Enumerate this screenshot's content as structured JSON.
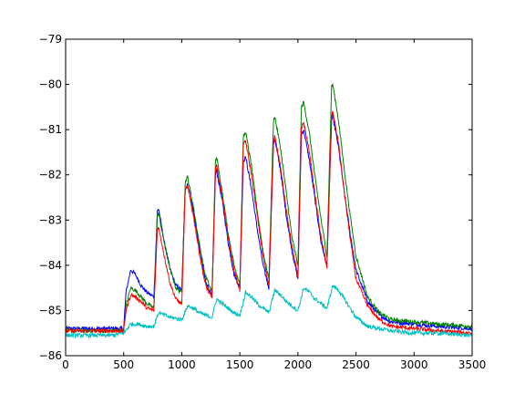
{
  "chart_data": {
    "type": "line",
    "title": "",
    "xlabel": "",
    "ylabel": "",
    "xlim": [
      0,
      3500
    ],
    "ylim": [
      -86,
      -79
    ],
    "grid": false,
    "x_ticks": [
      0,
      500,
      1000,
      1500,
      2000,
      2500,
      3000,
      3500
    ],
    "y_ticks": [
      -86,
      -85,
      -84,
      -83,
      -82,
      -81,
      -80,
      -79
    ],
    "x_tick_labels": [
      "0",
      "500",
      "1000",
      "1500",
      "2000",
      "2500",
      "3000",
      "3500"
    ],
    "y_tick_labels": [
      "−86",
      "−85",
      "−84",
      "−83",
      "−82",
      "−81",
      "−80",
      "−79"
    ],
    "series": [
      {
        "color": "#0000ff",
        "x": [
          0,
          500,
          520,
          560,
          600,
          650,
          700,
          760,
          790,
          800,
          850,
          900,
          950,
          1000,
          1030,
          1050,
          1100,
          1150,
          1200,
          1260,
          1290,
          1300,
          1350,
          1400,
          1450,
          1500,
          1530,
          1550,
          1600,
          1650,
          1700,
          1750,
          1790,
          1800,
          1850,
          1900,
          1950,
          2000,
          2030,
          2050,
          2100,
          2150,
          2200,
          2250,
          2290,
          2300,
          2350,
          2400,
          2450,
          2500,
          2600,
          2700,
          2800,
          3000,
          3200,
          3500
        ],
        "y": [
          -85.4,
          -85.4,
          -84.6,
          -84.1,
          -84.2,
          -84.45,
          -84.6,
          -84.7,
          -82.8,
          -82.75,
          -83.5,
          -84.1,
          -84.45,
          -84.55,
          -82.3,
          -82.2,
          -82.8,
          -83.6,
          -84.3,
          -84.7,
          -82.0,
          -81.9,
          -82.6,
          -83.5,
          -84.2,
          -84.5,
          -81.7,
          -81.6,
          -82.3,
          -83.2,
          -84.0,
          -84.5,
          -81.3,
          -81.2,
          -81.9,
          -82.9,
          -83.7,
          -84.3,
          -81.1,
          -81.0,
          -81.7,
          -82.6,
          -83.5,
          -84.0,
          -80.8,
          -80.7,
          -81.4,
          -82.4,
          -83.3,
          -84.1,
          -84.8,
          -85.1,
          -85.25,
          -85.3,
          -85.35,
          -85.4
        ]
      },
      {
        "color": "#008000",
        "x": [
          0,
          500,
          520,
          560,
          600,
          650,
          700,
          760,
          790,
          800,
          850,
          900,
          950,
          1000,
          1030,
          1050,
          1100,
          1150,
          1200,
          1260,
          1290,
          1300,
          1350,
          1400,
          1450,
          1500,
          1530,
          1550,
          1600,
          1650,
          1700,
          1750,
          1790,
          1800,
          1850,
          1900,
          1950,
          2000,
          2030,
          2050,
          2100,
          2150,
          2200,
          2250,
          2290,
          2300,
          2350,
          2400,
          2450,
          2500,
          2600,
          2700,
          2800,
          3000,
          3200,
          3500
        ],
        "y": [
          -85.45,
          -85.45,
          -84.9,
          -84.5,
          -84.55,
          -84.7,
          -84.85,
          -84.95,
          -82.9,
          -82.85,
          -83.5,
          -84.1,
          -84.5,
          -84.6,
          -82.15,
          -82.05,
          -82.7,
          -83.5,
          -84.2,
          -84.6,
          -81.7,
          -81.6,
          -82.4,
          -83.3,
          -84.0,
          -84.4,
          -81.15,
          -81.05,
          -81.8,
          -82.8,
          -83.7,
          -84.3,
          -80.8,
          -80.7,
          -81.4,
          -82.4,
          -83.4,
          -84.0,
          -80.5,
          -80.4,
          -81.1,
          -82.1,
          -83.0,
          -83.8,
          -80.05,
          -80.0,
          -80.8,
          -81.9,
          -82.9,
          -83.8,
          -84.7,
          -85.05,
          -85.2,
          -85.25,
          -85.3,
          -85.35
        ]
      },
      {
        "color": "#ff0000",
        "x": [
          0,
          500,
          520,
          560,
          600,
          650,
          700,
          760,
          790,
          800,
          850,
          900,
          950,
          1000,
          1030,
          1050,
          1100,
          1150,
          1200,
          1260,
          1290,
          1300,
          1350,
          1400,
          1450,
          1500,
          1530,
          1550,
          1600,
          1650,
          1700,
          1750,
          1790,
          1800,
          1850,
          1900,
          1950,
          2000,
          2030,
          2050,
          2100,
          2150,
          2200,
          2250,
          2290,
          2300,
          2350,
          2400,
          2450,
          2500,
          2600,
          2700,
          2800,
          3000,
          3200,
          3500
        ],
        "y": [
          -85.45,
          -85.45,
          -85.0,
          -84.65,
          -84.7,
          -84.8,
          -84.95,
          -85.0,
          -83.2,
          -83.15,
          -83.8,
          -84.4,
          -84.75,
          -84.85,
          -82.35,
          -82.25,
          -82.9,
          -83.7,
          -84.4,
          -84.75,
          -81.9,
          -81.8,
          -82.5,
          -83.4,
          -84.1,
          -84.55,
          -81.35,
          -81.25,
          -82.0,
          -82.9,
          -83.8,
          -84.45,
          -81.25,
          -81.15,
          -81.8,
          -82.8,
          -83.6,
          -84.25,
          -80.95,
          -80.85,
          -81.5,
          -82.5,
          -83.4,
          -84.05,
          -80.7,
          -80.6,
          -81.3,
          -82.4,
          -83.4,
          -84.3,
          -84.9,
          -85.2,
          -85.35,
          -85.4,
          -85.45,
          -85.5
        ]
      },
      {
        "color": "#00bfbf",
        "x": [
          0,
          200,
          400,
          500,
          560,
          620,
          700,
          760,
          800,
          850,
          900,
          1000,
          1050,
          1100,
          1150,
          1200,
          1260,
          1300,
          1350,
          1400,
          1450,
          1500,
          1550,
          1600,
          1650,
          1700,
          1750,
          1800,
          1850,
          1900,
          1950,
          2000,
          2050,
          2100,
          2150,
          2200,
          2250,
          2300,
          2350,
          2400,
          2450,
          2500,
          2600,
          2800,
          3000,
          3200,
          3500
        ],
        "y": [
          -85.55,
          -85.55,
          -85.55,
          -85.5,
          -85.3,
          -85.3,
          -85.35,
          -85.35,
          -85.05,
          -85.1,
          -85.15,
          -85.2,
          -84.9,
          -84.95,
          -85.05,
          -85.1,
          -85.15,
          -84.75,
          -84.85,
          -84.95,
          -85.05,
          -85.1,
          -84.6,
          -84.7,
          -84.85,
          -84.95,
          -85.05,
          -84.55,
          -84.65,
          -84.8,
          -84.9,
          -85.0,
          -84.5,
          -84.6,
          -84.75,
          -84.85,
          -84.95,
          -84.45,
          -84.55,
          -84.75,
          -84.95,
          -85.15,
          -85.35,
          -85.45,
          -85.5,
          -85.5,
          -85.55
        ]
      }
    ]
  }
}
